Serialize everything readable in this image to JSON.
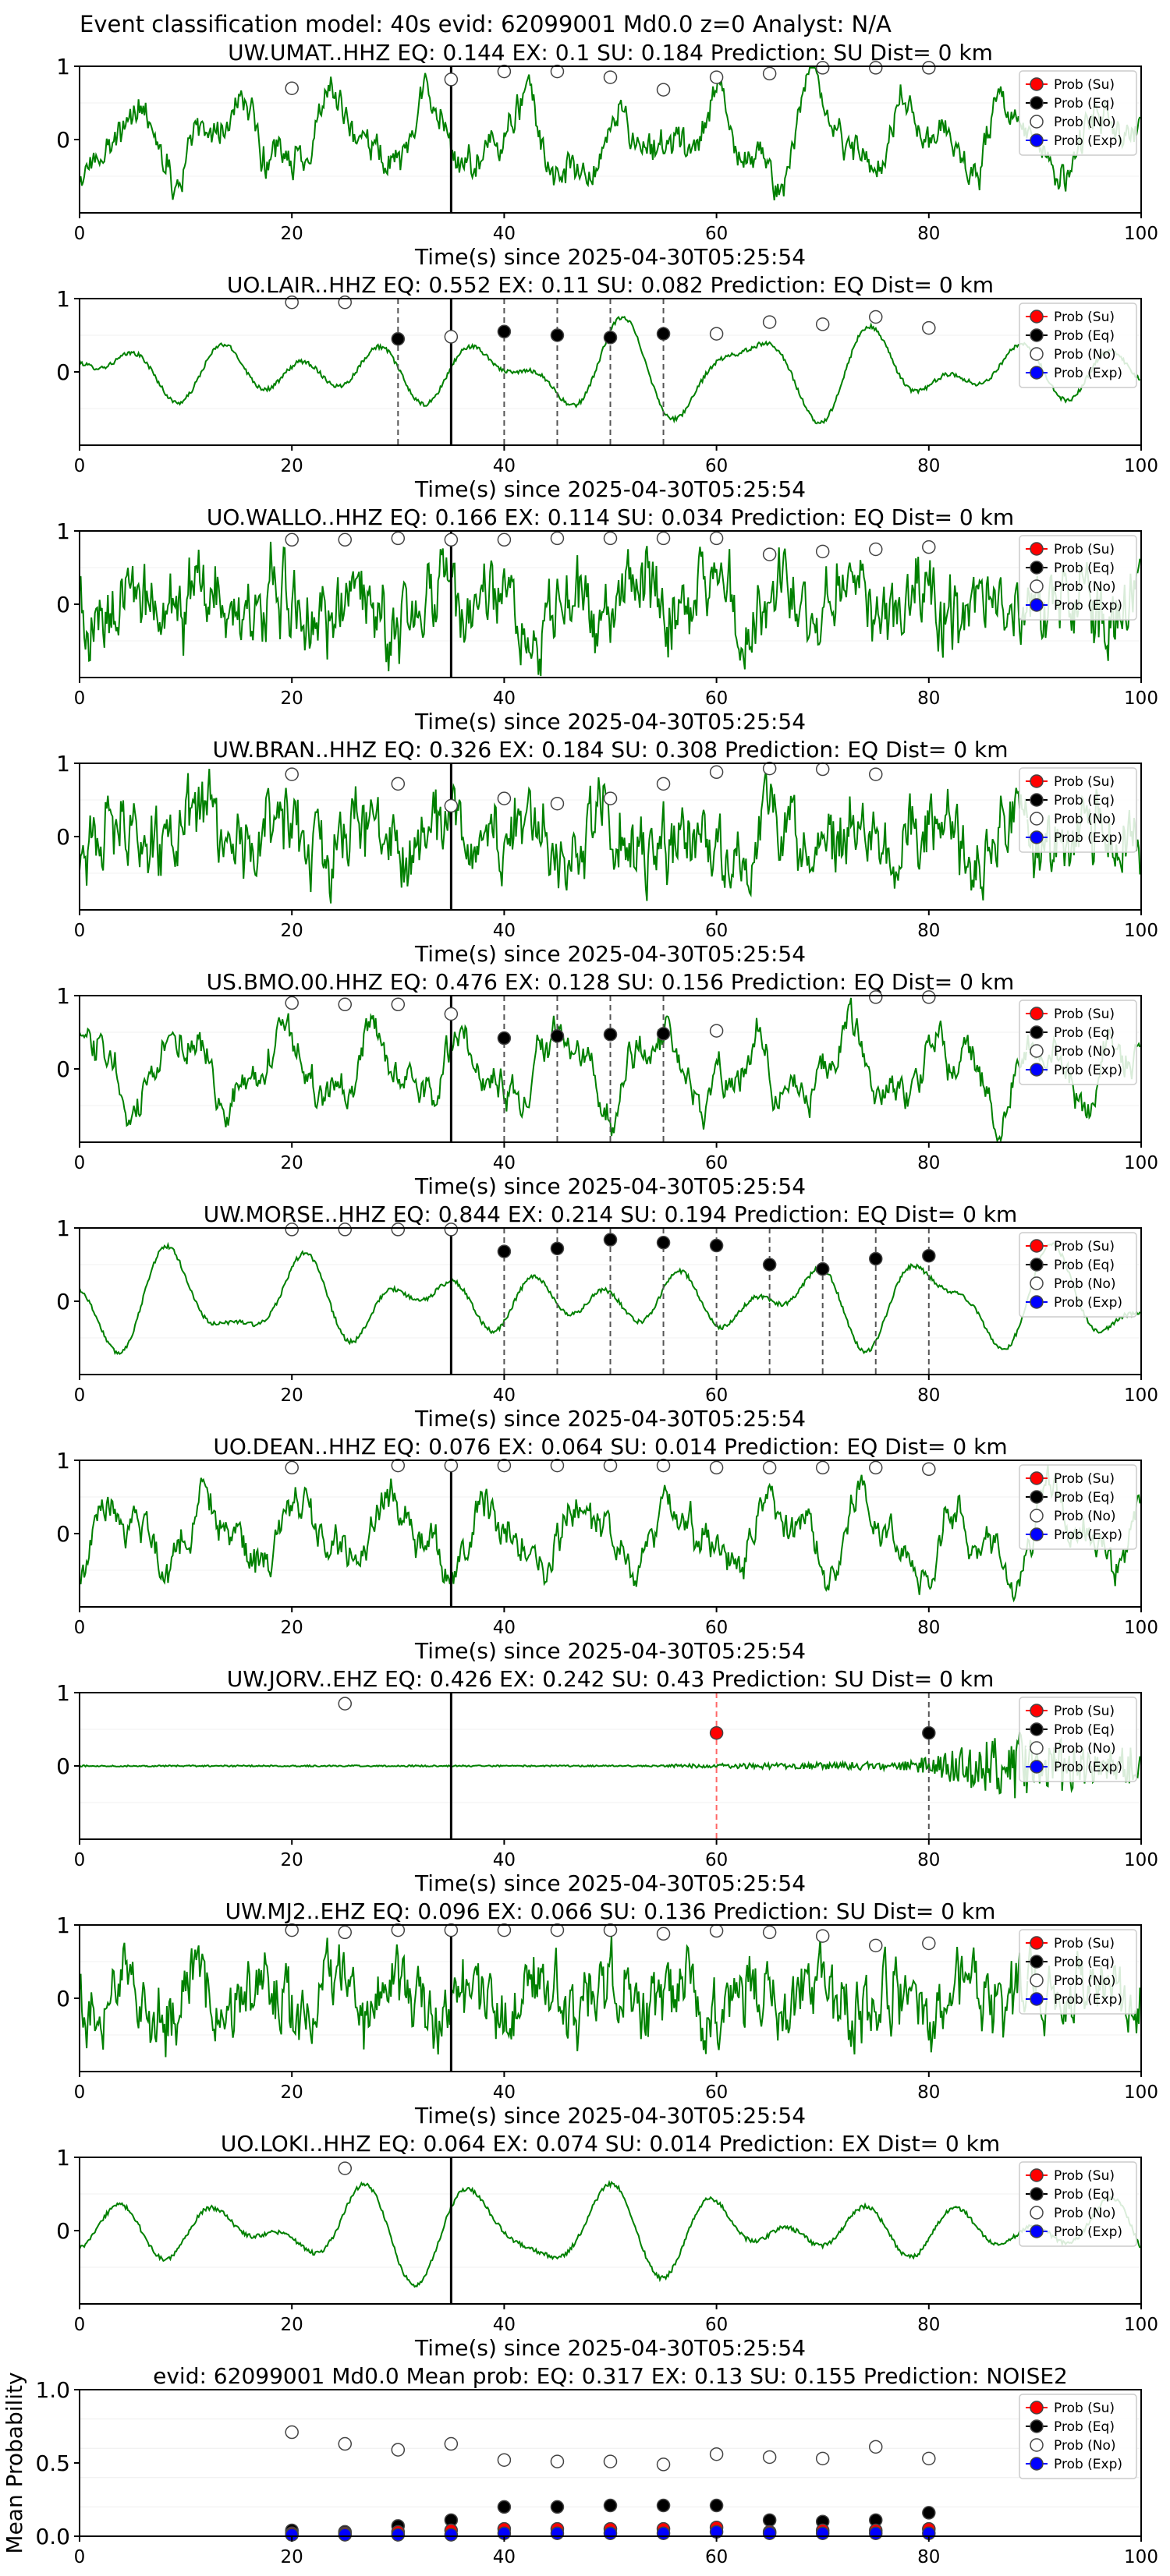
{
  "figure": {
    "suptitle": "Event classification model: 40s evid: 62099001 Md0.0 z=0 Analyst: N/A",
    "legend_entries": [
      "Prob (Su)",
      "Prob (Eq)",
      "Prob (No)",
      "Prob (Exp)"
    ],
    "colors": {
      "su": "#ff0000",
      "eq": "#000000",
      "no": "#ffffff",
      "exp": "#0000ff",
      "trace": "#008000"
    }
  },
  "chart_data": [
    {
      "type": "line",
      "title": "UW.UMAT..HHZ   EQ: 0.144  EX: 0.1  SU: 0.184   Prediction: SU    Dist= 0 km",
      "xlabel": "Time(s) since 2025-04-30T05:25:54",
      "ylabel": "",
      "xlim": [
        0,
        100
      ],
      "ylim": [
        -1,
        1
      ],
      "xticks": [
        "0",
        "20",
        "40",
        "60",
        "80",
        "100"
      ],
      "yticks": [
        "1",
        "0"
      ],
      "legend": [
        "Prob (Su)",
        "Prob (Eq)",
        "Prob (No)",
        "Prob (Exp)"
      ],
      "legend_position": "top-right",
      "arrival_time": 35,
      "trace_style": "mixed",
      "dashed_lines": [],
      "points": [
        {
          "x": 20,
          "y": 0.7,
          "class": "no"
        },
        {
          "x": 35,
          "y": 0.82,
          "class": "no"
        },
        {
          "x": 40,
          "y": 0.93,
          "class": "no"
        },
        {
          "x": 45,
          "y": 0.93,
          "class": "no"
        },
        {
          "x": 50,
          "y": 0.85,
          "class": "no"
        },
        {
          "x": 55,
          "y": 0.68,
          "class": "no"
        },
        {
          "x": 60,
          "y": 0.85,
          "class": "no"
        },
        {
          "x": 65,
          "y": 0.9,
          "class": "no"
        },
        {
          "x": 70,
          "y": 0.98,
          "class": "no"
        },
        {
          "x": 75,
          "y": 0.98,
          "class": "no"
        },
        {
          "x": 80,
          "y": 0.98,
          "class": "no"
        }
      ]
    },
    {
      "type": "line",
      "title": "UO.LAIR..HHZ   EQ: 0.552  EX: 0.11  SU: 0.082   Prediction: EQ    Dist= 0 km",
      "xlabel": "Time(s) since 2025-04-30T05:25:54",
      "ylabel": "",
      "xlim": [
        0,
        100
      ],
      "ylim": [
        -1,
        1
      ],
      "xticks": [
        "0",
        "20",
        "40",
        "60",
        "80",
        "100"
      ],
      "yticks": [
        "1",
        "0"
      ],
      "legend": [
        "Prob (Su)",
        "Prob (Eq)",
        "Prob (No)",
        "Prob (Exp)"
      ],
      "legend_position": "top-right",
      "arrival_time": 35,
      "trace_style": "smooth",
      "dashed_lines": [
        30,
        40,
        45,
        50,
        55
      ],
      "points": [
        {
          "x": 20,
          "y": 0.95,
          "class": "no"
        },
        {
          "x": 25,
          "y": 0.95,
          "class": "no"
        },
        {
          "x": 30,
          "y": 0.45,
          "class": "eq"
        },
        {
          "x": 35,
          "y": 0.48,
          "class": "no"
        },
        {
          "x": 40,
          "y": 0.55,
          "class": "eq"
        },
        {
          "x": 45,
          "y": 0.5,
          "class": "eq"
        },
        {
          "x": 50,
          "y": 0.47,
          "class": "eq"
        },
        {
          "x": 55,
          "y": 0.52,
          "class": "eq"
        },
        {
          "x": 60,
          "y": 0.52,
          "class": "no"
        },
        {
          "x": 65,
          "y": 0.68,
          "class": "no"
        },
        {
          "x": 70,
          "y": 0.65,
          "class": "no"
        },
        {
          "x": 75,
          "y": 0.75,
          "class": "no"
        },
        {
          "x": 80,
          "y": 0.6,
          "class": "no"
        }
      ]
    },
    {
      "type": "line",
      "title": "UO.WALLO..HHZ   EQ: 0.166  EX: 0.114  SU: 0.034   Prediction: EQ    Dist= 0 km",
      "xlabel": "Time(s) since 2025-04-30T05:25:54",
      "ylabel": "",
      "xlim": [
        0,
        100
      ],
      "ylim": [
        -1,
        1
      ],
      "xticks": [
        "0",
        "20",
        "40",
        "60",
        "80",
        "100"
      ],
      "yticks": [
        "1",
        "0"
      ],
      "legend": [
        "Prob (Su)",
        "Prob (Eq)",
        "Prob (No)",
        "Prob (Exp)"
      ],
      "legend_position": "top-right",
      "arrival_time": 35,
      "trace_style": "noisy",
      "dashed_lines": [],
      "points": [
        {
          "x": 20,
          "y": 0.88,
          "class": "no"
        },
        {
          "x": 25,
          "y": 0.88,
          "class": "no"
        },
        {
          "x": 30,
          "y": 0.9,
          "class": "no"
        },
        {
          "x": 35,
          "y": 0.88,
          "class": "no"
        },
        {
          "x": 40,
          "y": 0.88,
          "class": "no"
        },
        {
          "x": 45,
          "y": 0.9,
          "class": "no"
        },
        {
          "x": 50,
          "y": 0.9,
          "class": "no"
        },
        {
          "x": 55,
          "y": 0.9,
          "class": "no"
        },
        {
          "x": 60,
          "y": 0.9,
          "class": "no"
        },
        {
          "x": 65,
          "y": 0.68,
          "class": "no"
        },
        {
          "x": 70,
          "y": 0.72,
          "class": "no"
        },
        {
          "x": 75,
          "y": 0.75,
          "class": "no"
        },
        {
          "x": 80,
          "y": 0.78,
          "class": "no"
        }
      ]
    },
    {
      "type": "line",
      "title": "UW.BRAN..HHZ   EQ: 0.326  EX: 0.184  SU: 0.308   Prediction: EQ    Dist= 0 km",
      "xlabel": "Time(s) since 2025-04-30T05:25:54",
      "ylabel": "",
      "xlim": [
        0,
        100
      ],
      "ylim": [
        -1,
        1
      ],
      "xticks": [
        "0",
        "20",
        "40",
        "60",
        "80",
        "100"
      ],
      "yticks": [
        "1",
        "0"
      ],
      "legend": [
        "Prob (Su)",
        "Prob (Eq)",
        "Prob (No)",
        "Prob (Exp)"
      ],
      "legend_position": "top-right",
      "arrival_time": 35,
      "trace_style": "noisy",
      "dashed_lines": [],
      "points": [
        {
          "x": 20,
          "y": 0.85,
          "class": "no"
        },
        {
          "x": 30,
          "y": 0.72,
          "class": "no"
        },
        {
          "x": 35,
          "y": 0.42,
          "class": "no"
        },
        {
          "x": 40,
          "y": 0.52,
          "class": "no"
        },
        {
          "x": 45,
          "y": 0.45,
          "class": "no"
        },
        {
          "x": 50,
          "y": 0.52,
          "class": "no"
        },
        {
          "x": 55,
          "y": 0.72,
          "class": "no"
        },
        {
          "x": 60,
          "y": 0.88,
          "class": "no"
        },
        {
          "x": 65,
          "y": 0.93,
          "class": "no"
        },
        {
          "x": 70,
          "y": 0.92,
          "class": "no"
        },
        {
          "x": 75,
          "y": 0.85,
          "class": "no"
        }
      ]
    },
    {
      "type": "line",
      "title": "US.BMO.00.HHZ   EQ: 0.476  EX: 0.128  SU: 0.156   Prediction: EQ    Dist= 0 km",
      "xlabel": "Time(s) since 2025-04-30T05:25:54",
      "ylabel": "",
      "xlim": [
        0,
        100
      ],
      "ylim": [
        -1,
        1
      ],
      "xticks": [
        "0",
        "20",
        "40",
        "60",
        "80",
        "100"
      ],
      "yticks": [
        "1",
        "0"
      ],
      "legend": [
        "Prob (Su)",
        "Prob (Eq)",
        "Prob (No)",
        "Prob (Exp)"
      ],
      "legend_position": "top-right",
      "arrival_time": 35,
      "trace_style": "mixed",
      "dashed_lines": [
        40,
        45,
        50,
        55
      ],
      "points": [
        {
          "x": 20,
          "y": 0.9,
          "class": "no"
        },
        {
          "x": 25,
          "y": 0.88,
          "class": "no"
        },
        {
          "x": 30,
          "y": 0.88,
          "class": "no"
        },
        {
          "x": 35,
          "y": 0.75,
          "class": "no"
        },
        {
          "x": 40,
          "y": 0.42,
          "class": "eq"
        },
        {
          "x": 45,
          "y": 0.45,
          "class": "eq"
        },
        {
          "x": 50,
          "y": 0.47,
          "class": "eq"
        },
        {
          "x": 55,
          "y": 0.48,
          "class": "eq"
        },
        {
          "x": 60,
          "y": 0.52,
          "class": "no"
        },
        {
          "x": 75,
          "y": 0.98,
          "class": "no"
        },
        {
          "x": 80,
          "y": 0.98,
          "class": "no"
        }
      ]
    },
    {
      "type": "line",
      "title": "UW.MORSE..HHZ   EQ: 0.844  EX: 0.214  SU: 0.194   Prediction: EQ    Dist= 0 km",
      "xlabel": "Time(s) since 2025-04-30T05:25:54",
      "ylabel": "",
      "xlim": [
        0,
        100
      ],
      "ylim": [
        -1,
        1
      ],
      "xticks": [
        "0",
        "20",
        "40",
        "60",
        "80",
        "100"
      ],
      "yticks": [
        "1",
        "0"
      ],
      "legend": [
        "Prob (Su)",
        "Prob (Eq)",
        "Prob (No)",
        "Prob (Exp)"
      ],
      "legend_position": "top-right",
      "arrival_time": 35,
      "trace_style": "smooth",
      "dashed_lines": [
        40,
        45,
        50,
        55,
        60,
        65,
        70,
        75,
        80
      ],
      "points": [
        {
          "x": 20,
          "y": 0.98,
          "class": "no"
        },
        {
          "x": 25,
          "y": 0.98,
          "class": "no"
        },
        {
          "x": 30,
          "y": 0.98,
          "class": "no"
        },
        {
          "x": 35,
          "y": 0.98,
          "class": "no"
        },
        {
          "x": 40,
          "y": 0.68,
          "class": "eq"
        },
        {
          "x": 45,
          "y": 0.72,
          "class": "eq"
        },
        {
          "x": 50,
          "y": 0.84,
          "class": "eq"
        },
        {
          "x": 55,
          "y": 0.8,
          "class": "eq"
        },
        {
          "x": 60,
          "y": 0.76,
          "class": "eq"
        },
        {
          "x": 65,
          "y": 0.5,
          "class": "eq"
        },
        {
          "x": 70,
          "y": 0.44,
          "class": "eq"
        },
        {
          "x": 75,
          "y": 0.58,
          "class": "eq"
        },
        {
          "x": 80,
          "y": 0.62,
          "class": "eq"
        }
      ]
    },
    {
      "type": "line",
      "title": "UO.DEAN..HHZ   EQ: 0.076  EX: 0.064  SU: 0.014   Prediction: EQ    Dist= 0 km",
      "xlabel": "Time(s) since 2025-04-30T05:25:54",
      "ylabel": "",
      "xlim": [
        0,
        100
      ],
      "ylim": [
        -1,
        1
      ],
      "xticks": [
        "0",
        "20",
        "40",
        "60",
        "80",
        "100"
      ],
      "yticks": [
        "1",
        "0"
      ],
      "legend": [
        "Prob (Su)",
        "Prob (Eq)",
        "Prob (No)",
        "Prob (Exp)"
      ],
      "legend_position": "top-right",
      "arrival_time": 35,
      "trace_style": "mixed",
      "dashed_lines": [],
      "points": [
        {
          "x": 20,
          "y": 0.9,
          "class": "no"
        },
        {
          "x": 30,
          "y": 0.93,
          "class": "no"
        },
        {
          "x": 35,
          "y": 0.93,
          "class": "no"
        },
        {
          "x": 40,
          "y": 0.93,
          "class": "no"
        },
        {
          "x": 45,
          "y": 0.93,
          "class": "no"
        },
        {
          "x": 50,
          "y": 0.93,
          "class": "no"
        },
        {
          "x": 55,
          "y": 0.93,
          "class": "no"
        },
        {
          "x": 60,
          "y": 0.9,
          "class": "no"
        },
        {
          "x": 65,
          "y": 0.9,
          "class": "no"
        },
        {
          "x": 70,
          "y": 0.9,
          "class": "no"
        },
        {
          "x": 75,
          "y": 0.9,
          "class": "no"
        },
        {
          "x": 80,
          "y": 0.88,
          "class": "no"
        }
      ]
    },
    {
      "type": "line",
      "title": "UW.JORV..EHZ   EQ: 0.426  EX: 0.242  SU: 0.43   Prediction: SU    Dist= 0 km",
      "xlabel": "Time(s) since 2025-04-30T05:25:54",
      "ylabel": "",
      "xlim": [
        0,
        100
      ],
      "ylim": [
        -1,
        1
      ],
      "xticks": [
        "0",
        "20",
        "40",
        "60",
        "80",
        "100"
      ],
      "yticks": [
        "1",
        "0"
      ],
      "legend": [
        "Prob (Su)",
        "Prob (Eq)",
        "Prob (No)",
        "Prob (Exp)"
      ],
      "legend_position": "top-right",
      "arrival_time": 35,
      "trace_style": "quiet",
      "dashed_lines": [],
      "dashed_lines_red": [
        60
      ],
      "dashed_lines_gray": [
        80
      ],
      "points": [
        {
          "x": 25,
          "y": 0.85,
          "class": "no"
        },
        {
          "x": 60,
          "y": 0.45,
          "class": "su"
        },
        {
          "x": 80,
          "y": 0.45,
          "class": "eq"
        }
      ]
    },
    {
      "type": "line",
      "title": "UW.MJ2..EHZ   EQ: 0.096  EX: 0.066  SU: 0.136   Prediction: SU    Dist= 0 km",
      "xlabel": "Time(s) since 2025-04-30T05:25:54",
      "ylabel": "",
      "xlim": [
        0,
        100
      ],
      "ylim": [
        -1,
        1
      ],
      "xticks": [
        "0",
        "20",
        "40",
        "60",
        "80",
        "100"
      ],
      "yticks": [
        "1",
        "0"
      ],
      "legend": [
        "Prob (Su)",
        "Prob (Eq)",
        "Prob (No)",
        "Prob (Exp)"
      ],
      "legend_position": "top-right",
      "arrival_time": 35,
      "trace_style": "noisy",
      "dashed_lines": [],
      "points": [
        {
          "x": 20,
          "y": 0.93,
          "class": "no"
        },
        {
          "x": 25,
          "y": 0.9,
          "class": "no"
        },
        {
          "x": 30,
          "y": 0.93,
          "class": "no"
        },
        {
          "x": 35,
          "y": 0.93,
          "class": "no"
        },
        {
          "x": 40,
          "y": 0.93,
          "class": "no"
        },
        {
          "x": 45,
          "y": 0.93,
          "class": "no"
        },
        {
          "x": 50,
          "y": 0.93,
          "class": "no"
        },
        {
          "x": 55,
          "y": 0.88,
          "class": "no"
        },
        {
          "x": 60,
          "y": 0.92,
          "class": "no"
        },
        {
          "x": 65,
          "y": 0.9,
          "class": "no"
        },
        {
          "x": 70,
          "y": 0.85,
          "class": "no"
        },
        {
          "x": 75,
          "y": 0.72,
          "class": "no"
        },
        {
          "x": 80,
          "y": 0.75,
          "class": "no"
        }
      ]
    },
    {
      "type": "line",
      "title": "UO.LOKI..HHZ   EQ: 0.064  EX: 0.074  SU: 0.014   Prediction: EX    Dist= 0 km",
      "xlabel": "Time(s) since 2025-04-30T05:25:54",
      "ylabel": "",
      "xlim": [
        0,
        100
      ],
      "ylim": [
        -1,
        1
      ],
      "xticks": [
        "0",
        "20",
        "40",
        "60",
        "80",
        "100"
      ],
      "yticks": [
        "1",
        "0"
      ],
      "legend": [
        "Prob (Su)",
        "Prob (Eq)",
        "Prob (No)",
        "Prob (Exp)"
      ],
      "legend_position": "top-right",
      "arrival_time": 35,
      "trace_style": "smooth",
      "dashed_lines": [],
      "points": [
        {
          "x": 25,
          "y": 0.85,
          "class": "no"
        }
      ]
    },
    {
      "type": "scatter",
      "title": "evid: 62099001   Md0.0   Mean prob:   EQ: 0.317  EX: 0.13  SU: 0.155   Prediction: NOISE2",
      "xlabel": "",
      "ylabel": "Mean Probability",
      "xlim": [
        0,
        100
      ],
      "ylim": [
        0,
        1
      ],
      "xticks": [
        "0",
        "20",
        "40",
        "60",
        "80",
        "100"
      ],
      "yticks": [
        "1.0",
        "0.5",
        "0.0"
      ],
      "legend": [
        "Prob (Su)",
        "Prob (Eq)",
        "Prob (No)",
        "Prob (Exp)"
      ],
      "legend_position": "top-right",
      "x": [
        20,
        25,
        30,
        35,
        40,
        45,
        50,
        55,
        60,
        65,
        70,
        75,
        80
      ],
      "series": [
        {
          "name": "Prob (No)",
          "class": "no",
          "values": [
            0.71,
            0.63,
            0.59,
            0.63,
            0.52,
            0.51,
            0.51,
            0.49,
            0.56,
            0.54,
            0.53,
            0.61,
            0.53
          ]
        },
        {
          "name": "Prob (Eq)",
          "class": "eq",
          "values": [
            0.04,
            0.03,
            0.07,
            0.11,
            0.2,
            0.2,
            0.21,
            0.21,
            0.21,
            0.11,
            0.1,
            0.11,
            0.16
          ]
        },
        {
          "name": "Prob (Su)",
          "class": "su",
          "values": [
            0.02,
            0.02,
            0.03,
            0.04,
            0.05,
            0.05,
            0.05,
            0.05,
            0.06,
            0.03,
            0.04,
            0.04,
            0.05
          ]
        },
        {
          "name": "Prob (Exp)",
          "class": "exp",
          "values": [
            0.01,
            0.01,
            0.01,
            0.01,
            0.02,
            0.02,
            0.02,
            0.02,
            0.03,
            0.02,
            0.02,
            0.02,
            0.02
          ]
        }
      ]
    }
  ]
}
